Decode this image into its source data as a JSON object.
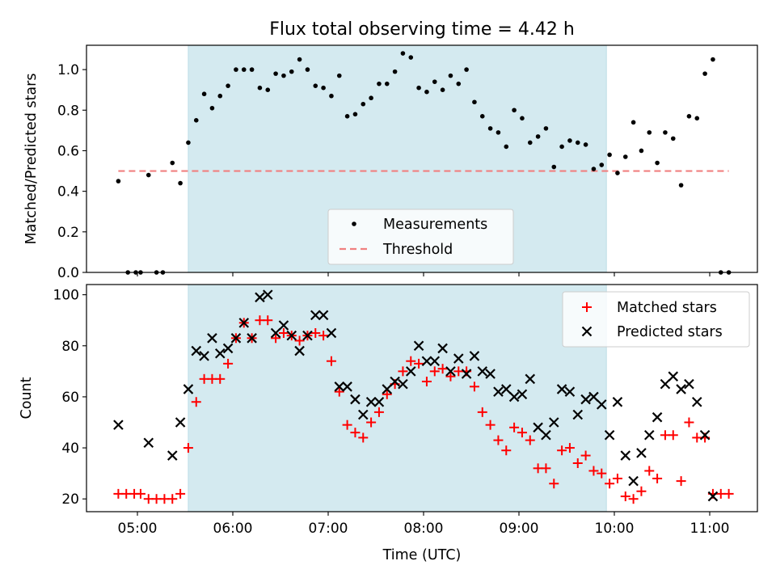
{
  "chart_data": [
    {
      "type": "scatter",
      "title": "Flux total observing time = 4.42 h",
      "xlabel": "",
      "ylabel": "Matched/Predicted stars",
      "xlim": [
        "04:30",
        "11:30"
      ],
      "ylim": [
        0,
        1.12
      ],
      "yticks": [
        "0.0",
        "0.2",
        "0.4",
        "0.6",
        "0.8",
        "1.0"
      ],
      "yticks_values": [
        0,
        0.2,
        0.4,
        0.6,
        0.8,
        1.0
      ],
      "shaded_span": [
        "05:32",
        "09:55"
      ],
      "shaded_color": "#d4eaf0",
      "legend_position": "lower center",
      "series": [
        {
          "name": "Measurements",
          "marker": "point",
          "color": "#000000",
          "points": [
            [
              "04:48",
              0.45
            ],
            [
              "04:54",
              0.0
            ],
            [
              "04:59",
              0.0
            ],
            [
              "05:02",
              0.0
            ],
            [
              "05:07",
              0.48
            ],
            [
              "05:12",
              0.0
            ],
            [
              "05:16",
              0.0
            ],
            [
              "05:22",
              0.54
            ],
            [
              "05:27",
              0.44
            ],
            [
              "05:32",
              0.64
            ],
            [
              "05:37",
              0.75
            ],
            [
              "05:42",
              0.88
            ],
            [
              "05:47",
              0.81
            ],
            [
              "05:52",
              0.87
            ],
            [
              "05:57",
              0.92
            ],
            [
              "06:02",
              1.0
            ],
            [
              "06:07",
              1.0
            ],
            [
              "06:12",
              1.0
            ],
            [
              "06:17",
              0.91
            ],
            [
              "06:22",
              0.9
            ],
            [
              "06:27",
              0.98
            ],
            [
              "06:32",
              0.97
            ],
            [
              "06:37",
              0.99
            ],
            [
              "06:42",
              1.05
            ],
            [
              "06:47",
              1.0
            ],
            [
              "06:52",
              0.92
            ],
            [
              "06:57",
              0.91
            ],
            [
              "07:02",
              0.87
            ],
            [
              "07:07",
              0.97
            ],
            [
              "07:12",
              0.77
            ],
            [
              "07:17",
              0.78
            ],
            [
              "07:22",
              0.83
            ],
            [
              "07:27",
              0.86
            ],
            [
              "07:32",
              0.93
            ],
            [
              "07:37",
              0.93
            ],
            [
              "07:42",
              0.99
            ],
            [
              "07:47",
              1.08
            ],
            [
              "07:52",
              1.06
            ],
            [
              "07:57",
              0.91
            ],
            [
              "08:02",
              0.89
            ],
            [
              "08:07",
              0.94
            ],
            [
              "08:12",
              0.9
            ],
            [
              "08:17",
              0.97
            ],
            [
              "08:22",
              0.93
            ],
            [
              "08:27",
              1.0
            ],
            [
              "08:32",
              0.84
            ],
            [
              "08:37",
              0.77
            ],
            [
              "08:42",
              0.71
            ],
            [
              "08:47",
              0.69
            ],
            [
              "08:52",
              0.62
            ],
            [
              "08:57",
              0.8
            ],
            [
              "09:02",
              0.76
            ],
            [
              "09:07",
              0.64
            ],
            [
              "09:12",
              0.67
            ],
            [
              "09:17",
              0.71
            ],
            [
              "09:22",
              0.52
            ],
            [
              "09:27",
              0.62
            ],
            [
              "09:32",
              0.65
            ],
            [
              "09:37",
              0.64
            ],
            [
              "09:42",
              0.63
            ],
            [
              "09:47",
              0.51
            ],
            [
              "09:52",
              0.53
            ],
            [
              "09:57",
              0.58
            ],
            [
              "10:02",
              0.49
            ],
            [
              "10:07",
              0.57
            ],
            [
              "10:12",
              0.74
            ],
            [
              "10:17",
              0.6
            ],
            [
              "10:22",
              0.69
            ],
            [
              "10:27",
              0.54
            ],
            [
              "10:32",
              0.69
            ],
            [
              "10:37",
              0.66
            ],
            [
              "10:42",
              0.43
            ],
            [
              "10:47",
              0.77
            ],
            [
              "10:52",
              0.76
            ],
            [
              "10:57",
              0.98
            ],
            [
              "11:02",
              1.05
            ],
            [
              "11:07",
              0.0
            ],
            [
              "11:12",
              0.0
            ]
          ]
        },
        {
          "name": "Threshold",
          "marker": "dashed-line",
          "color": "#f08080",
          "points": [
            [
              "04:48",
              0.5
            ],
            [
              "11:12",
              0.5
            ]
          ]
        }
      ]
    },
    {
      "type": "scatter",
      "title": "",
      "xlabel": "Time (UTC)",
      "ylabel": "Count",
      "xlim": [
        "04:30",
        "11:30"
      ],
      "ylim": [
        15,
        104
      ],
      "xticks": [
        "05:00",
        "06:00",
        "07:00",
        "08:00",
        "09:00",
        "10:00",
        "11:00"
      ],
      "yticks": [
        "20",
        "40",
        "60",
        "80",
        "100"
      ],
      "yticks_values": [
        20,
        40,
        60,
        80,
        100
      ],
      "shaded_span": [
        "05:32",
        "09:55"
      ],
      "shaded_color": "#d4eaf0",
      "legend_position": "upper right",
      "series": [
        {
          "name": "Matched stars",
          "marker": "plus",
          "color": "#ff0000",
          "points": [
            [
              "04:48",
              22
            ],
            [
              "04:53",
              22
            ],
            [
              "04:58",
              22
            ],
            [
              "05:02",
              22
            ],
            [
              "05:07",
              20
            ],
            [
              "05:12",
              20
            ],
            [
              "05:17",
              20
            ],
            [
              "05:22",
              20
            ],
            [
              "05:27",
              22
            ],
            [
              "05:32",
              40
            ],
            [
              "05:37",
              58
            ],
            [
              "05:42",
              67
            ],
            [
              "05:47",
              67
            ],
            [
              "05:52",
              67
            ],
            [
              "05:57",
              73
            ],
            [
              "06:02",
              83
            ],
            [
              "06:07",
              89
            ],
            [
              "06:12",
              83
            ],
            [
              "06:17",
              90
            ],
            [
              "06:22",
              90
            ],
            [
              "06:27",
              83
            ],
            [
              "06:32",
              85
            ],
            [
              "06:37",
              84
            ],
            [
              "06:42",
              82
            ],
            [
              "06:47",
              84
            ],
            [
              "06:52",
              85
            ],
            [
              "06:57",
              84
            ],
            [
              "07:02",
              74
            ],
            [
              "07:07",
              62
            ],
            [
              "07:12",
              49
            ],
            [
              "07:17",
              46
            ],
            [
              "07:22",
              44
            ],
            [
              "07:27",
              50
            ],
            [
              "07:32",
              54
            ],
            [
              "07:37",
              61
            ],
            [
              "07:42",
              65
            ],
            [
              "07:47",
              70
            ],
            [
              "07:52",
              74
            ],
            [
              "07:57",
              73
            ],
            [
              "08:02",
              66
            ],
            [
              "08:07",
              70
            ],
            [
              "08:12",
              71
            ],
            [
              "08:17",
              68
            ],
            [
              "08:22",
              70
            ],
            [
              "08:27",
              70
            ],
            [
              "08:32",
              64
            ],
            [
              "08:37",
              54
            ],
            [
              "08:42",
              49
            ],
            [
              "08:47",
              43
            ],
            [
              "08:52",
              39
            ],
            [
              "08:57",
              48
            ],
            [
              "09:02",
              46
            ],
            [
              "09:07",
              43
            ],
            [
              "09:12",
              32
            ],
            [
              "09:17",
              32
            ],
            [
              "09:22",
              26
            ],
            [
              "09:27",
              39
            ],
            [
              "09:32",
              40
            ],
            [
              "09:37",
              34
            ],
            [
              "09:42",
              37
            ],
            [
              "09:47",
              31
            ],
            [
              "09:52",
              30
            ],
            [
              "09:57",
              26
            ],
            [
              "10:02",
              28
            ],
            [
              "10:07",
              21
            ],
            [
              "10:12",
              20
            ],
            [
              "10:17",
              23
            ],
            [
              "10:22",
              31
            ],
            [
              "10:27",
              28
            ],
            [
              "10:32",
              45
            ],
            [
              "10:37",
              45
            ],
            [
              "10:42",
              27
            ],
            [
              "10:47",
              50
            ],
            [
              "10:52",
              44
            ],
            [
              "10:57",
              44
            ],
            [
              "11:02",
              22
            ],
            [
              "11:07",
              22
            ],
            [
              "11:12",
              22
            ]
          ]
        },
        {
          "name": "Predicted stars",
          "marker": "x",
          "color": "#000000",
          "points": [
            [
              "04:48",
              49
            ],
            [
              "05:07",
              42
            ],
            [
              "05:22",
              37
            ],
            [
              "05:27",
              50
            ],
            [
              "05:32",
              63
            ],
            [
              "05:37",
              78
            ],
            [
              "05:42",
              76
            ],
            [
              "05:47",
              83
            ],
            [
              "05:52",
              77
            ],
            [
              "05:57",
              79
            ],
            [
              "06:02",
              83
            ],
            [
              "06:07",
              89
            ],
            [
              "06:12",
              83
            ],
            [
              "06:17",
              99
            ],
            [
              "06:22",
              100
            ],
            [
              "06:27",
              85
            ],
            [
              "06:32",
              88
            ],
            [
              "06:37",
              84
            ],
            [
              "06:42",
              78
            ],
            [
              "06:47",
              84
            ],
            [
              "06:52",
              92
            ],
            [
              "06:57",
              92
            ],
            [
              "07:02",
              85
            ],
            [
              "07:07",
              64
            ],
            [
              "07:12",
              64
            ],
            [
              "07:17",
              59
            ],
            [
              "07:22",
              53
            ],
            [
              "07:27",
              58
            ],
            [
              "07:32",
              58
            ],
            [
              "07:37",
              63
            ],
            [
              "07:42",
              66
            ],
            [
              "07:47",
              65
            ],
            [
              "07:52",
              70
            ],
            [
              "07:57",
              80
            ],
            [
              "08:02",
              74
            ],
            [
              "08:07",
              74
            ],
            [
              "08:12",
              79
            ],
            [
              "08:17",
              70
            ],
            [
              "08:22",
              75
            ],
            [
              "08:27",
              69
            ],
            [
              "08:32",
              76
            ],
            [
              "08:37",
              70
            ],
            [
              "08:42",
              69
            ],
            [
              "08:47",
              62
            ],
            [
              "08:52",
              63
            ],
            [
              "08:57",
              60
            ],
            [
              "09:02",
              61
            ],
            [
              "09:07",
              67
            ],
            [
              "09:12",
              48
            ],
            [
              "09:17",
              45
            ],
            [
              "09:22",
              50
            ],
            [
              "09:27",
              63
            ],
            [
              "09:32",
              62
            ],
            [
              "09:37",
              53
            ],
            [
              "09:42",
              59
            ],
            [
              "09:47",
              60
            ],
            [
              "09:52",
              57
            ],
            [
              "09:57",
              45
            ],
            [
              "10:02",
              58
            ],
            [
              "10:07",
              37
            ],
            [
              "10:12",
              27
            ],
            [
              "10:17",
              38
            ],
            [
              "10:22",
              45
            ],
            [
              "10:27",
              52
            ],
            [
              "10:32",
              65
            ],
            [
              "10:37",
              68
            ],
            [
              "10:42",
              63
            ],
            [
              "10:47",
              65
            ],
            [
              "10:52",
              58
            ],
            [
              "10:57",
              45
            ],
            [
              "11:02",
              21
            ]
          ]
        }
      ]
    }
  ]
}
